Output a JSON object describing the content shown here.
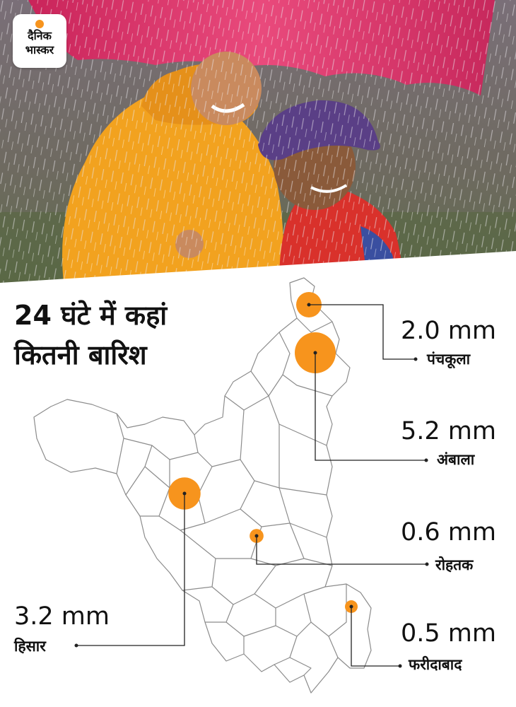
{
  "brand": {
    "line1": "दैनिक",
    "line2": "भास्कर",
    "accent": "#f7941d"
  },
  "title_line1": "24 घंटे में कहां",
  "title_line2": "कितनी बारिश",
  "colors": {
    "bubble": "#f7941d",
    "outline": "#8c8c8c",
    "leader": "#222222",
    "umbrella": "#e0356b",
    "coat_yellow": "#f2a21f",
    "coat_red": "#d9312b",
    "hat": "#5a3f86"
  },
  "locations": [
    {
      "name": "पंचकूला",
      "value_text": "2.0 mm",
      "rain_mm": 2.0
    },
    {
      "name": "अंबाला",
      "value_text": "5.2 mm",
      "rain_mm": 5.2
    },
    {
      "name": "रोहतक",
      "value_text": "0.6 mm",
      "rain_mm": 0.6
    },
    {
      "name": "फरीदाबाद",
      "value_text": "0.5 mm",
      "rain_mm": 0.5
    },
    {
      "name": "हिसार",
      "value_text": "3.2 mm",
      "rain_mm": 3.2
    }
  ]
}
